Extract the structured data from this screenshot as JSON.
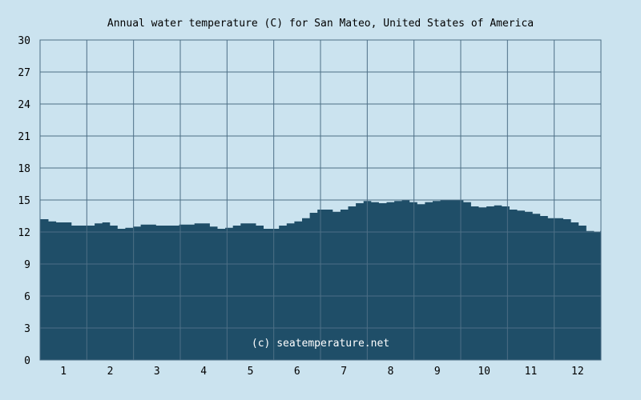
{
  "chart_data": {
    "type": "area",
    "title": "Annual water temperature (C) for San Mateo, United States of America",
    "xlabel": "",
    "ylabel": "",
    "ylim": [
      0,
      30
    ],
    "yticks": [
      "0",
      "3",
      "6",
      "9",
      "12",
      "15",
      "18",
      "21",
      "24",
      "27",
      "30"
    ],
    "xticks": [
      "1",
      "2",
      "3",
      "4",
      "5",
      "6",
      "7",
      "8",
      "9",
      "10",
      "11",
      "12"
    ],
    "grid": true,
    "legend": "none",
    "area_color": "#1f4e68",
    "watermark": "(c) seatemperature.net",
    "series": [
      {
        "x": [
          1,
          6,
          11,
          16,
          21,
          26,
          31,
          36,
          41,
          46,
          51,
          56,
          61,
          66,
          71,
          76,
          81,
          86,
          91,
          96,
          101,
          106,
          111,
          116,
          121,
          126,
          131,
          136,
          141,
          146,
          151,
          156,
          161,
          166,
          171,
          176,
          181,
          186,
          191,
          196,
          201,
          206,
          211,
          216,
          221,
          226,
          231,
          236,
          241,
          246,
          251,
          256,
          261,
          266,
          271,
          276,
          281,
          286,
          291,
          296,
          301,
          306,
          311,
          316,
          321,
          326,
          331,
          336,
          341,
          346,
          351,
          356,
          361,
          365
        ],
        "values": [
          13.2,
          13.0,
          12.9,
          12.9,
          12.6,
          12.6,
          12.6,
          12.8,
          12.9,
          12.6,
          12.3,
          12.4,
          12.5,
          12.7,
          12.7,
          12.6,
          12.6,
          12.6,
          12.7,
          12.7,
          12.8,
          12.8,
          12.5,
          12.3,
          12.4,
          12.6,
          12.8,
          12.8,
          12.6,
          12.3,
          12.3,
          12.6,
          12.8,
          13.0,
          13.3,
          13.8,
          14.1,
          14.1,
          13.9,
          14.1,
          14.4,
          14.7,
          14.9,
          14.8,
          14.7,
          14.8,
          14.9,
          15.0,
          14.8,
          14.6,
          14.8,
          14.9,
          15.0,
          15.0,
          15.0,
          14.8,
          14.4,
          14.3,
          14.4,
          14.5,
          14.4,
          14.1,
          14.0,
          13.9,
          13.7,
          13.5,
          13.3,
          13.3,
          13.2,
          12.9,
          12.6,
          12.1,
          12.0,
          12.1
        ]
      }
    ]
  }
}
